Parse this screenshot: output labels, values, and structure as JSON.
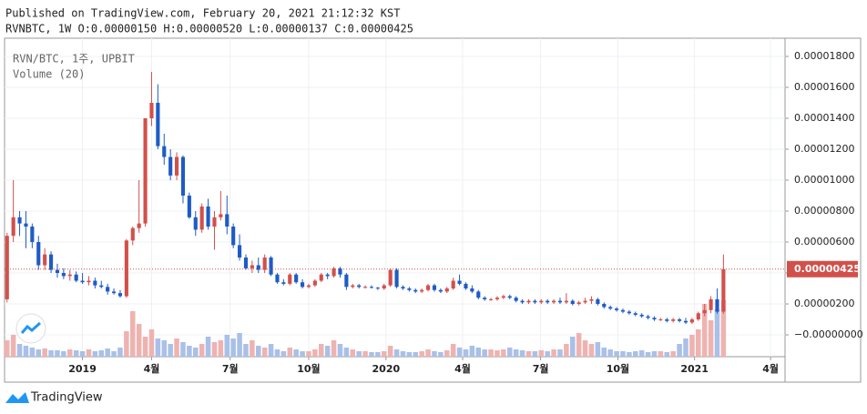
{
  "chart_data": {
    "type": "candlestick",
    "header": "Published on TradingView.com, February 20, 2021 21:12:32 KST",
    "ohlc_text": "RVNBTC, 1W O:0.00000150 H:0.00000520 L:0.00000137 C:0.00000425",
    "legend": [
      "RVN/BTC, 1주, UPBIT",
      "Volume (20)"
    ],
    "brand": "TradingView",
    "up_color": "#d2504a",
    "down_color": "#1e5bc6",
    "volume_up_color": "#eeb3b0",
    "volume_down_color": "#a9c0e8",
    "grid": true,
    "xlim": [
      -0.4,
      123.8
    ],
    "xticks": [
      {
        "value": 12,
        "label": "2019"
      },
      {
        "value": 23,
        "label": "4월"
      },
      {
        "value": 35.5,
        "label": "7월"
      },
      {
        "value": 48,
        "label": "10월"
      },
      {
        "value": 60.3,
        "label": "2020"
      },
      {
        "value": 72.5,
        "label": "4월"
      },
      {
        "value": 84.9,
        "label": "7월"
      },
      {
        "value": 97.2,
        "label": "10월"
      },
      {
        "value": 109.4,
        "label": "2021"
      },
      {
        "value": 121.5,
        "label": "4월"
      }
    ],
    "ylim": [
      -1.41e-06,
      1.9176e-05
    ],
    "yticks": [
      {
        "value": 1.8e-05,
        "label": "0.00001800"
      },
      {
        "value": 1.6e-05,
        "label": "0.00001600"
      },
      {
        "value": 1.4e-05,
        "label": "0.00001400"
      },
      {
        "value": 1.2e-05,
        "label": "0.00001200"
      },
      {
        "value": 1e-05,
        "label": "0.00001000"
      },
      {
        "value": 8e-06,
        "label": "0.00000800"
      },
      {
        "value": 6e-06,
        "label": "0.00000600"
      },
      {
        "value": 4e-06,
        "label": "0.00000400"
      },
      {
        "value": 2e-06,
        "label": "0.00000200"
      },
      {
        "value": 0,
        "label": "−0.00000000"
      }
    ],
    "price_line": {
      "value": 4.25e-06,
      "label": "0.00000425"
    },
    "open": [
      2.3e-06,
      6.4e-06,
      7.6e-06,
      7.2e-06,
      7e-06,
      6e-06,
      4.5e-06,
      5.2e-06,
      4.2e-06,
      4e-06,
      3.8e-06,
      3.9e-06,
      3.5e-06,
      3.4e-06,
      3.5e-06,
      3.2e-06,
      3.1e-06,
      2.8e-06,
      2.7e-06,
      2.5e-06,
      6.1e-06,
      6.9e-06,
      7.2e-06,
      1.4e-05,
      1.5e-05,
      1.22e-05,
      1.15e-05,
      1.03e-05,
      1.15e-05,
      9e-06,
      7.6e-06,
      6.8e-06,
      8.3e-06,
      7e-06,
      7.6e-06,
      7.8e-06,
      7e-06,
      5.8e-06,
      5e-06,
      4.3e-06,
      4.5e-06,
      4.2e-06,
      5e-06,
      3.9e-06,
      3.4e-06,
      3.3e-06,
      3.9e-06,
      3.4e-06,
      3.1e-06,
      3.2e-06,
      3.5e-06,
      3.9e-06,
      3.8e-06,
      4.3e-06,
      3.9e-06,
      3.1e-06,
      3.2e-06,
      3.1e-06,
      3.1e-06,
      3.05e-06,
      3e-06,
      3.2e-06,
      4.2e-06,
      3.1e-06,
      3e-06,
      2.9e-06,
      2.8e-06,
      2.9e-06,
      3.2e-06,
      2.9e-06,
      2.8e-06,
      3e-06,
      3.5e-06,
      3.3e-06,
      3e-06,
      2.8e-06,
      2.4e-06,
      2.3e-06,
      2.3e-06,
      2.4e-06,
      2.5e-06,
      2.4e-06,
      2.2e-06,
      2.1e-06,
      2.2e-06,
      2.1e-06,
      2.2e-06,
      2.1e-06,
      2.2e-06,
      2.1e-06,
      2.2e-06,
      2e-06,
      2.1e-06,
      2.2e-06,
      2.3e-06,
      2e-06,
      1.8e-06,
      1.7e-06,
      1.6e-06,
      1.5e-06,
      1.4e-06,
      1.3e-06,
      1.2e-06,
      1.1e-06,
      1e-06,
      1e-06,
      9e-07,
      1e-06,
      9e-07,
      8e-07,
      1e-06,
      1.4e-06,
      1.6e-06,
      2.3e-06,
      1.5e-06
    ],
    "high": [
      6.6e-06,
      1e-05,
      8e-06,
      8e-06,
      7.2e-06,
      6.4e-06,
      5.6e-06,
      5.4e-06,
      4.6e-06,
      4.3e-06,
      4.2e-06,
      4.1e-06,
      4e-06,
      3.8e-06,
      3.7e-06,
      3.5e-06,
      3.3e-06,
      3e-06,
      2.9e-06,
      6.2e-06,
      7e-06,
      1e-05,
      1.4e-05,
      1.7e-05,
      1.62e-05,
      1.3e-05,
      1.2e-05,
      1.18e-05,
      1.16e-05,
      9.2e-06,
      8e-06,
      8.5e-06,
      8.8e-06,
      8e-06,
      9.3e-06,
      9e-06,
      7.2e-06,
      6.5e-06,
      5.2e-06,
      4.8e-06,
      5e-06,
      5.2e-06,
      5.1e-06,
      4e-06,
      3.6e-06,
      4e-06,
      4e-06,
      3.6e-06,
      3.3e-06,
      3.6e-06,
      4e-06,
      4e-06,
      4.4e-06,
      4.4e-06,
      4e-06,
      3.3e-06,
      3.3e-06,
      3.2e-06,
      3.2e-06,
      3.1e-06,
      3.3e-06,
      4.3e-06,
      4.3e-06,
      3.2e-06,
      3.1e-06,
      3e-06,
      3e-06,
      3.3e-06,
      3.3e-06,
      3e-06,
      3.1e-06,
      3.7e-06,
      3.9e-06,
      3.4e-06,
      3.2e-06,
      2.9e-06,
      2.5e-06,
      2.4e-06,
      2.5e-06,
      2.6e-06,
      2.6e-06,
      2.5e-06,
      2.3e-06,
      2.3e-06,
      2.3e-06,
      2.3e-06,
      2.3e-06,
      2.3e-06,
      2.4e-06,
      2.7e-06,
      2.3e-06,
      2.2e-06,
      2.4e-06,
      2.5e-06,
      2.4e-06,
      2.1e-06,
      1.9e-06,
      1.8e-06,
      1.7e-06,
      1.6e-06,
      1.5e-06,
      1.4e-06,
      1.3e-06,
      1.2e-06,
      1.1e-06,
      1.1e-06,
      1.1e-06,
      1.1e-06,
      1.1e-06,
      1.1e-06,
      1.5e-06,
      2e-06,
      2.5e-06,
      3e-06,
      5.2e-06
    ],
    "low": [
      2.1e-06,
      6e-06,
      6.4e-06,
      5.6e-06,
      5.6e-06,
      4.2e-06,
      4.2e-06,
      4e-06,
      3.7e-06,
      3.6e-06,
      3.5e-06,
      3.4e-06,
      3.3e-06,
      3.2e-06,
      3e-06,
      3e-06,
      2.6e-06,
      2.6e-06,
      2.4e-06,
      2.4e-06,
      5.8e-06,
      6.6e-06,
      7e-06,
      1.35e-05,
      1.2e-05,
      1.1e-05,
      1e-05,
      1e-05,
      8.5e-06,
      7.5e-06,
      6.4e-06,
      6.6e-06,
      6.8e-06,
      5.5e-06,
      7.4e-06,
      6.5e-06,
      5.6e-06,
      4.8e-06,
      4.2e-06,
      4e-06,
      4e-06,
      4e-06,
      3.8e-06,
      3.3e-06,
      3.2e-06,
      3.2e-06,
      3.3e-06,
      3e-06,
      3e-06,
      3.1e-06,
      3.4e-06,
      3.6e-06,
      3.7e-06,
      3.7e-06,
      2.9e-06,
      3e-06,
      3e-06,
      3e-06,
      3e-06,
      2.9e-06,
      2.9e-06,
      3.1e-06,
      3e-06,
      2.9e-06,
      2.8e-06,
      2.7e-06,
      2.7e-06,
      2.8e-06,
      2.8e-06,
      2.7e-06,
      2.7e-06,
      2.9e-06,
      3.2e-06,
      2.9e-06,
      2.7e-06,
      2.3e-06,
      2.2e-06,
      2.2e-06,
      2.2e-06,
      2.3e-06,
      2.3e-06,
      2.1e-06,
      2e-06,
      2e-06,
      2e-06,
      2e-06,
      2e-06,
      2e-06,
      2e-06,
      2e-06,
      1.9e-06,
      1.9e-06,
      2e-06,
      2e-06,
      1.9e-06,
      1.7e-06,
      1.6e-06,
      1.5e-06,
      1.4e-06,
      1.3e-06,
      1.2e-06,
      1.1e-06,
      1e-06,
      9e-07,
      9e-07,
      8e-07,
      8e-07,
      8e-07,
      7e-07,
      7e-07,
      9e-07,
      1.2e-06,
      1.4e-06,
      1.37e-06,
      1.37e-06
    ],
    "close": [
      6.4e-06,
      7.6e-06,
      7.2e-06,
      7e-06,
      6e-06,
      4.5e-06,
      5.2e-06,
      4.2e-06,
      4e-06,
      3.8e-06,
      3.9e-06,
      3.5e-06,
      3.4e-06,
      3.5e-06,
      3.2e-06,
      3.1e-06,
      2.8e-06,
      2.7e-06,
      2.5e-06,
      6.1e-06,
      6.9e-06,
      7.2e-06,
      1.4e-05,
      1.5e-05,
      1.22e-05,
      1.15e-05,
      1.03e-05,
      1.15e-05,
      9e-06,
      7.6e-06,
      6.8e-06,
      8.3e-06,
      7e-06,
      7.6e-06,
      7.8e-06,
      7e-06,
      5.8e-06,
      5e-06,
      4.3e-06,
      4.5e-06,
      4.2e-06,
      5e-06,
      3.9e-06,
      3.4e-06,
      3.3e-06,
      3.9e-06,
      3.4e-06,
      3.1e-06,
      3.2e-06,
      3.5e-06,
      3.9e-06,
      3.8e-06,
      4.3e-06,
      3.9e-06,
      3.1e-06,
      3.2e-06,
      3.1e-06,
      3.1e-06,
      3.05e-06,
      3e-06,
      3.2e-06,
      4.2e-06,
      3.1e-06,
      3e-06,
      2.9e-06,
      2.8e-06,
      2.9e-06,
      3.2e-06,
      2.9e-06,
      2.8e-06,
      3e-06,
      3.5e-06,
      3.3e-06,
      3e-06,
      2.8e-06,
      2.4e-06,
      2.3e-06,
      2.3e-06,
      2.4e-06,
      2.5e-06,
      2.4e-06,
      2.2e-06,
      2.1e-06,
      2.2e-06,
      2.1e-06,
      2.2e-06,
      2.1e-06,
      2.2e-06,
      2.1e-06,
      2.2e-06,
      2e-06,
      2.1e-06,
      2.2e-06,
      2.3e-06,
      2e-06,
      1.8e-06,
      1.7e-06,
      1.6e-06,
      1.5e-06,
      1.4e-06,
      1.3e-06,
      1.2e-06,
      1.1e-06,
      1e-06,
      1e-06,
      9e-07,
      1e-06,
      9e-07,
      8e-07,
      1e-06,
      1.4e-06,
      1.6e-06,
      2.3e-06,
      1.5e-06,
      4.25e-06
    ],
    "volume": [
      18,
      24,
      14,
      12,
      10,
      8,
      9,
      7,
      7,
      6,
      8,
      7,
      6,
      8,
      6,
      7,
      9,
      6,
      10,
      28,
      50,
      36,
      22,
      30,
      20,
      18,
      14,
      20,
      16,
      12,
      10,
      14,
      22,
      16,
      18,
      24,
      20,
      26,
      14,
      18,
      12,
      10,
      14,
      8,
      6,
      10,
      8,
      6,
      6,
      8,
      14,
      12,
      18,
      14,
      10,
      8,
      6,
      6,
      5,
      5,
      6,
      12,
      8,
      6,
      5,
      5,
      6,
      8,
      6,
      5,
      7,
      14,
      10,
      8,
      12,
      10,
      8,
      8,
      7,
      8,
      10,
      8,
      7,
      6,
      6,
      7,
      6,
      8,
      8,
      14,
      22,
      26,
      18,
      14,
      16,
      10,
      8,
      6,
      6,
      5,
      6,
      7,
      5,
      6,
      6,
      5,
      6,
      14,
      20,
      24,
      30,
      58,
      40,
      52,
      62
    ]
  }
}
